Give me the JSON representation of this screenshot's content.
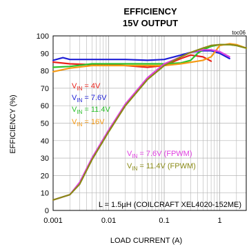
{
  "colors": {
    "vin_4v": "#e8231b",
    "vin_7v6": "#1f1fd6",
    "vin_11v4": "#2bc12b",
    "vin_16v": "#f59a14",
    "vin_7v6_fpwm": "#e040e0",
    "vin_11v4_fpwm": "#8a8a16"
  },
  "chart_data": {
    "type": "line",
    "title": "EFFICIENCY",
    "subtitle": "15V OUTPUT",
    "code": "toc06",
    "xlabel": "LOAD CURRENT (A)",
    "ylabel": "EFFICIENCY (%)",
    "xscale": "log",
    "xlim": [
      0.001,
      3
    ],
    "ylim": [
      0,
      100
    ],
    "xticks": [
      0.001,
      0.01,
      0.1,
      1
    ],
    "xtick_labels": [
      "0.001",
      "0.01",
      "0.1",
      "1"
    ],
    "yticks": [
      0,
      10,
      20,
      30,
      40,
      50,
      60,
      70,
      80,
      90,
      100
    ],
    "ytick_labels": [
      "0",
      "10",
      "20",
      "30",
      "40",
      "50",
      "60",
      "70",
      "80",
      "90",
      "100"
    ],
    "grid": true,
    "annotation": "L = 1.5µH (COILCRAFT XEL4020-152ME)",
    "legend_placement": "in-plot labels",
    "series": [
      {
        "name": "VIN = 4V",
        "legend_parts": [
          "V",
          "IN",
          " = 4V"
        ],
        "color_key": "vin_4v",
        "x": [
          0.001,
          0.002,
          0.005,
          0.01,
          0.02,
          0.05,
          0.1,
          0.2,
          0.3,
          0.5,
          0.7
        ],
        "y": [
          85,
          84,
          83.5,
          83.5,
          83,
          82,
          83,
          87,
          89,
          88,
          85.5
        ]
      },
      {
        "name": "VIN = 7.6V",
        "legend_parts": [
          "V",
          "IN",
          " = 7.6V"
        ],
        "color_key": "vin_7v6",
        "x": [
          0.001,
          0.0015,
          0.002,
          0.003,
          0.005,
          0.01,
          0.02,
          0.05,
          0.1,
          0.2,
          0.3,
          0.5,
          0.7,
          1.0,
          1.5
        ],
        "y": [
          86,
          87.5,
          86.5,
          86.5,
          86.5,
          86.5,
          86.5,
          86,
          86.5,
          89,
          90.5,
          91.5,
          91.5,
          90,
          87
        ]
      },
      {
        "name": "VIN = 11.4V",
        "legend_parts": [
          "V",
          "IN",
          " = 11.4V"
        ],
        "color_key": "vin_11v4",
        "x": [
          0.001,
          0.002,
          0.005,
          0.01,
          0.02,
          0.05,
          0.1,
          0.2,
          0.3,
          0.4,
          0.5,
          0.7,
          1.0,
          1.5,
          2.0,
          3.0
        ],
        "y": [
          82,
          82.5,
          84,
          84,
          84,
          84,
          84,
          84.5,
          86,
          90,
          92,
          94,
          95,
          95,
          94.5,
          93
        ]
      },
      {
        "name": "VIN = 16V",
        "legend_parts": [
          "V",
          "IN",
          " = 16V"
        ],
        "color_key": "vin_16v",
        "x": [
          0.001,
          0.002,
          0.005,
          0.01,
          0.02,
          0.05,
          0.1,
          0.2,
          0.5,
          0.7,
          1.0,
          1.5,
          2.0,
          3.0
        ],
        "y": [
          79.5,
          81.5,
          83,
          83,
          83,
          83,
          83,
          84,
          86,
          88,
          94.5,
          95.5,
          95,
          93
        ]
      },
      {
        "name": "VIN = 7.6V (FPWM)",
        "legend_parts": [
          "V",
          "IN",
          " = 7.6V (FPWM)"
        ],
        "color_key": "vin_7v6_fpwm",
        "x": [
          0.001,
          0.002,
          0.003,
          0.005,
          0.01,
          0.02,
          0.05,
          0.1,
          0.2,
          0.3,
          0.5,
          0.7,
          1.0,
          1.5
        ],
        "y": [
          6,
          9,
          16,
          30,
          46,
          61,
          76,
          84,
          88,
          90.5,
          92,
          92,
          91,
          88
        ]
      },
      {
        "name": "VIN = 11.4V (FPWM)",
        "legend_parts": [
          "V",
          "IN",
          " = 11.4V (FPWM)"
        ],
        "color_key": "vin_11v4_fpwm",
        "x": [
          0.001,
          0.002,
          0.003,
          0.005,
          0.01,
          0.02,
          0.05,
          0.1,
          0.2,
          0.3,
          0.5,
          0.7,
          1.0,
          1.5,
          2.0,
          3.0
        ],
        "y": [
          6,
          9,
          15,
          29,
          45,
          60,
          75,
          83,
          88,
          90.5,
          93,
          94.5,
          95,
          95,
          94.5,
          93
        ]
      }
    ]
  }
}
